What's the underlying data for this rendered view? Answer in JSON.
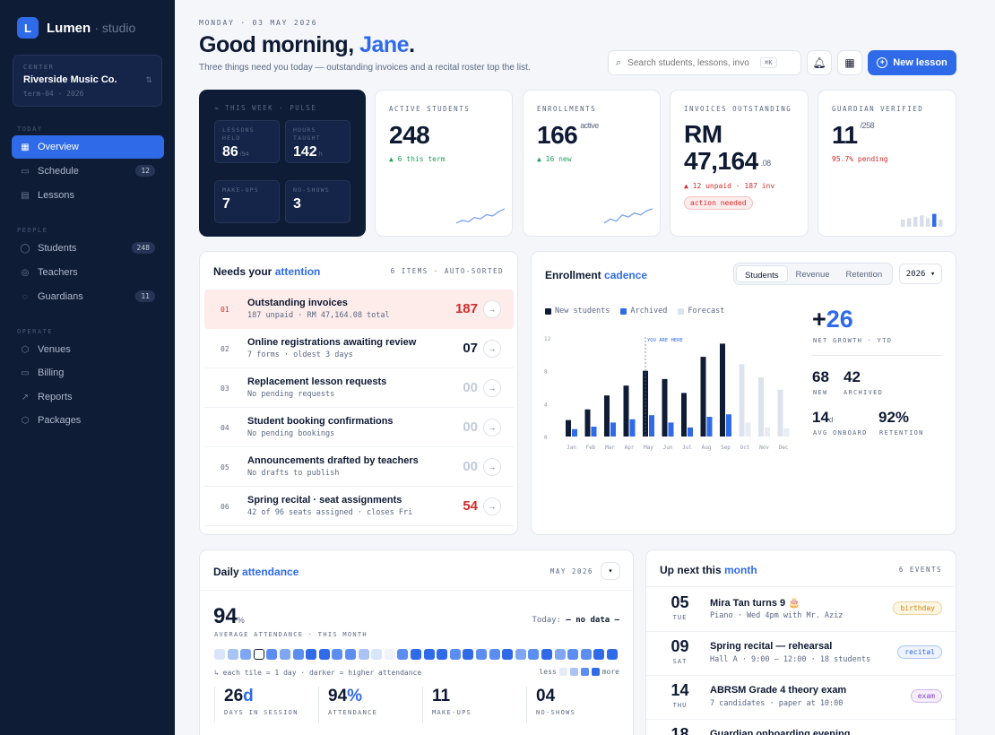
{
  "brand": {
    "name": "Lumen",
    "sub": "· studio",
    "logo_letter": "L"
  },
  "center": {
    "label": "CENTER",
    "name": "Riverside Music Co.",
    "term": "term-04 · 2026",
    "chevron": "⇅"
  },
  "nav": {
    "sections": {
      "today": "TODAY",
      "people": "PEOPLE",
      "operate": "OPERATE"
    },
    "items": [
      {
        "label": "Overview",
        "icon": "grid-icon",
        "glyph": "▦"
      },
      {
        "label": "Schedule",
        "icon": "calendar-icon",
        "glyph": "▭",
        "badge": "12"
      },
      {
        "label": "Lessons",
        "icon": "document-icon",
        "glyph": "▤"
      },
      {
        "label": "Students",
        "icon": "user-icon",
        "glyph": "◯",
        "badge": "248"
      },
      {
        "label": "Teachers",
        "icon": "users-icon",
        "glyph": "◎"
      },
      {
        "label": "Guardians",
        "icon": "guardian-icon",
        "glyph": "◌",
        "badge": "11"
      },
      {
        "label": "Venues",
        "icon": "hexagon-icon",
        "glyph": "⬡"
      },
      {
        "label": "Billing",
        "icon": "card-icon",
        "glyph": "▭"
      },
      {
        "label": "Reports",
        "icon": "trend-icon",
        "glyph": "↗"
      },
      {
        "label": "Packages",
        "icon": "package-icon",
        "glyph": "⬡"
      }
    ]
  },
  "header": {
    "date": "MONDAY · 03 MAY 2026",
    "greeting": "Good morning, ",
    "name": "Jane",
    "period": ".",
    "subtitle": "Three things need you today — outstanding invoices and a recital roster top the list.",
    "search_placeholder": "Search students, lessons, invo",
    "shortcut": "⌘K",
    "new_lesson": "New lesson"
  },
  "pulse": {
    "title": "≈  THIS WEEK · PULSE",
    "tiles": [
      {
        "label": "LESSONS HELD",
        "value": "86",
        "sub": "/94"
      },
      {
        "label": "HOURS TAUGHT",
        "value": "142",
        "sub": "h"
      },
      {
        "label": "MAKE-UPS",
        "value": "7",
        "sub": ""
      },
      {
        "label": "NO-SHOWS",
        "value": "3",
        "sub": ""
      }
    ]
  },
  "kpis": {
    "active": {
      "label": "ACTIVE STUDENTS",
      "value": "248",
      "delta": "▲ 6 this term",
      "spark": [
        3,
        4,
        3.5,
        5,
        4.5,
        6,
        5.5,
        7,
        8
      ]
    },
    "enroll": {
      "label": "ENROLLMENTS",
      "value": "166",
      "sup": "active",
      "delta": "▲ 16 new",
      "spark": [
        2,
        3,
        2.5,
        4,
        3.5,
        4.5,
        4,
        5,
        5.5
      ]
    },
    "invoices": {
      "label": "INVOICES OUTSTANDING",
      "line1": "RM",
      "value": "47,164",
      "sup": ".08",
      "delta": "▲ 12 unpaid · 187 inv",
      "pill": "action needed"
    },
    "guardian": {
      "label": "GUARDIAN VERIFIED",
      "value": "11",
      "sup": "/258",
      "delta": "95.7% pending",
      "bars": [
        0.5,
        0.6,
        0.7,
        0.8,
        0.6,
        0.9,
        0.5
      ]
    }
  },
  "attention": {
    "title_a": "Needs your ",
    "title_b": "attention",
    "meta": "6 ITEMS · AUTO-SORTED",
    "rows": [
      {
        "num": "01",
        "title": "Outstanding invoices",
        "sub": "187 unpaid · RM 47,164.08 total",
        "count": "187",
        "style": "red",
        "hl": true
      },
      {
        "num": "02",
        "title": "Online registrations awaiting review",
        "sub": "7 forms · oldest 3 days",
        "count": "07",
        "style": "dark",
        "hl": false
      },
      {
        "num": "03",
        "title": "Replacement lesson requests",
        "sub": "No pending requests",
        "count": "00",
        "style": "muted",
        "hl": false
      },
      {
        "num": "04",
        "title": "Student booking confirmations",
        "sub": "No pending bookings",
        "count": "00",
        "style": "muted",
        "hl": false
      },
      {
        "num": "05",
        "title": "Announcements drafted by teachers",
        "sub": "No drafts to publish",
        "count": "00",
        "style": "muted",
        "hl": false
      },
      {
        "num": "06",
        "title": "Spring recital · seat assignments",
        "sub": "42 of 96 seats assigned · closes Fri",
        "count": "54",
        "style": "red",
        "hl": false
      }
    ],
    "arrow": "→"
  },
  "enrollment": {
    "title_a": "Enrollment ",
    "title_b": "cadence",
    "tabs": [
      "Students",
      "Revenue",
      "Retention"
    ],
    "year": "2026 ▾",
    "net_sign": "+",
    "net": "26",
    "net_label": "NET GROWTH · YTD",
    "new": "68",
    "new_label": "NEW",
    "archived": "42",
    "archived_label": "ARCHIVED",
    "onboard": "14",
    "onboard_unit": "d",
    "onboard_label": "AVG ONBOARD",
    "retention": "92%",
    "retention_label": "RETENTION"
  },
  "chart_data": {
    "type": "bar",
    "categories": [
      "Jan",
      "Feb",
      "Mar",
      "Apr",
      "May",
      "Jun",
      "Jul",
      "Aug",
      "Sep",
      "Oct",
      "Nov",
      "Dec"
    ],
    "series": [
      {
        "name": "New students",
        "values": [
          2,
          3.3,
          5,
          6.2,
          8,
          7,
          5.3,
          9.7,
          11.3,
          8.8,
          7.2,
          5.7
        ]
      },
      {
        "name": "Archived",
        "values": [
          0.9,
          1.2,
          1.7,
          2.1,
          2.6,
          1.7,
          1.1,
          2.4,
          2.7,
          1.7,
          1.1,
          1
        ]
      }
    ],
    "forecast_from": "Oct",
    "legend": [
      "New students",
      "Archived",
      "Forecast"
    ],
    "yticks": [
      0,
      4,
      8,
      12
    ],
    "ylim": [
      0,
      12
    ],
    "marker_at": "May",
    "marker_label": "YOU ARE HERE",
    "colors": {
      "new": "#0f1c36",
      "archived": "#2f6be8",
      "forecast_new": "#dde3ee",
      "forecast_arch": "#e8ecf3"
    }
  },
  "attendance": {
    "title_a": "Daily ",
    "title_b": "attendance",
    "month": "MAY 2026",
    "value": "94",
    "unit": "%",
    "label": "AVERAGE ATTENDANCE · THIS MONTH",
    "today_label": "Today: ",
    "today_value": "— no data —",
    "levels": [
      1,
      2,
      3,
      5,
      4,
      3,
      4,
      5,
      5,
      4,
      4,
      2,
      1,
      0,
      4,
      5,
      5,
      5,
      4,
      5,
      4,
      4,
      5,
      3,
      4,
      5,
      3,
      4,
      4,
      5,
      5
    ],
    "today_index": 3,
    "caption": "↳ each tile = 1 day · darker = higher attendance",
    "less": "less",
    "more": "more",
    "stats": [
      {
        "value": "26",
        "unit": "d",
        "label": "DAYS IN SESSION"
      },
      {
        "value": "94",
        "unit": "%",
        "label": "ATTENDANCE"
      },
      {
        "value": "11",
        "unit": "",
        "label": "MAKE-UPS"
      },
      {
        "value": "04",
        "unit": "",
        "label": "NO-SHOWS"
      }
    ]
  },
  "events": {
    "title_a": "Up next this ",
    "title_b": "month",
    "meta": "6 EVENTS",
    "rows": [
      {
        "day": "05",
        "dow": "TUE",
        "title": "Mira Tan turns 9 🎂",
        "sub": "Piano · Wed 4pm with Mr. Aziz",
        "tag": "birthday",
        "tag_color": "#c78a12",
        "tag_bg": "#fdf6e3"
      },
      {
        "day": "09",
        "dow": "SAT",
        "title": "Spring recital — rehearsal",
        "sub": "Hall A · 9:00 — 12:00 · 18 students",
        "tag": "recital",
        "tag_color": "#2f6be8",
        "tag_bg": "#eef3fd"
      },
      {
        "day": "14",
        "dow": "THU",
        "title": "ABRSM Grade 4 theory exam",
        "sub": "7 candidates · paper at 10:00",
        "tag": "exam",
        "tag_color": "#8a3fd1",
        "tag_bg": "#f5eefc"
      },
      {
        "day": "18",
        "dow": "",
        "title": "Guardian onboarding evening",
        "sub": "",
        "tag": "",
        "tag_color": "#2f6be8",
        "tag_bg": "#eef3fd"
      }
    ]
  }
}
